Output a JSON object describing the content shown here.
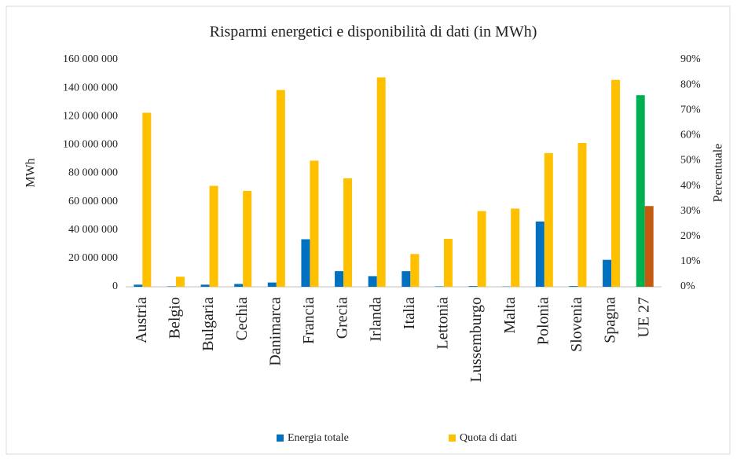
{
  "chart_data": {
    "type": "bar",
    "title": "Risparmi energetici e disponibilità di dati (in MWh)",
    "y_label": "MWh",
    "y2_label": "Percentuale",
    "categories": [
      "Austria",
      "Belgio",
      "Bulgaria",
      "Cechia",
      "Danimarca",
      "Francia",
      "Grecia",
      "Irlanda",
      "Italia",
      "Lettonia",
      "Lussemburgo",
      "Malta",
      "Polonia",
      "Slovenia",
      "Spagna",
      "UE 27"
    ],
    "series": [
      {
        "name": "Energia totale",
        "color": "#0070c0",
        "colors": [
          "#0070c0",
          "#0070c0",
          "#0070c0",
          "#0070c0",
          "#0070c0",
          "#0070c0",
          "#0070c0",
          "#0070c0",
          "#0070c0",
          "#0070c0",
          "#0070c0",
          "#0070c0",
          "#0070c0",
          "#0070c0",
          "#0070c0",
          "#00b050"
        ],
        "values": [
          1500000,
          300000,
          1500000,
          2000000,
          3000000,
          33500000,
          11000000,
          7500000,
          11000000,
          300000,
          500000,
          200000,
          46000000,
          500000,
          19000000,
          135000000
        ]
      },
      {
        "name": "Quota di dati",
        "color": "#ffc000",
        "axis": "y2",
        "colors": [
          "#ffc000",
          "#ffc000",
          "#ffc000",
          "#ffc000",
          "#ffc000",
          "#ffc000",
          "#ffc000",
          "#ffc000",
          "#ffc000",
          "#ffc000",
          "#ffc000",
          "#ffc000",
          "#ffc000",
          "#ffc000",
          "#ffc000",
          "#c55a11"
        ],
        "values": [
          69,
          4,
          40,
          38,
          78,
          50,
          43,
          83,
          13,
          19,
          30,
          31,
          53,
          57,
          82,
          32
        ]
      }
    ],
    "ylim": [
      0,
      160000000
    ],
    "yticks": [
      0,
      {
        "value": 20000000,
        "label": "20 000 000"
      },
      {
        "value": 40000000,
        "label": "40 000 000"
      },
      {
        "value": 60000000,
        "label": "60 000 000"
      },
      {
        "value": 80000000,
        "label": "80 000 000"
      },
      {
        "value": 100000000,
        "label": "100 000 000"
      },
      {
        "value": 120000000,
        "label": "120 000 000"
      },
      {
        "value": 140000000,
        "label": "140 000 000"
      },
      {
        "value": 160000000,
        "label": "160 000 000"
      }
    ],
    "y2lim": [
      0,
      90
    ],
    "y2ticks": [
      {
        "value": 0,
        "label": "0%"
      },
      {
        "value": 10,
        "label": "10%"
      },
      {
        "value": 20,
        "label": "20%"
      },
      {
        "value": 30,
        "label": "30%"
      },
      {
        "value": 40,
        "label": "40%"
      },
      {
        "value": 50,
        "label": "50%"
      },
      {
        "value": 60,
        "label": "60%"
      },
      {
        "value": 70,
        "label": "70%"
      },
      {
        "value": 80,
        "label": "80%"
      },
      {
        "value": 90,
        "label": "90%"
      }
    ],
    "legend": "bottom"
  }
}
